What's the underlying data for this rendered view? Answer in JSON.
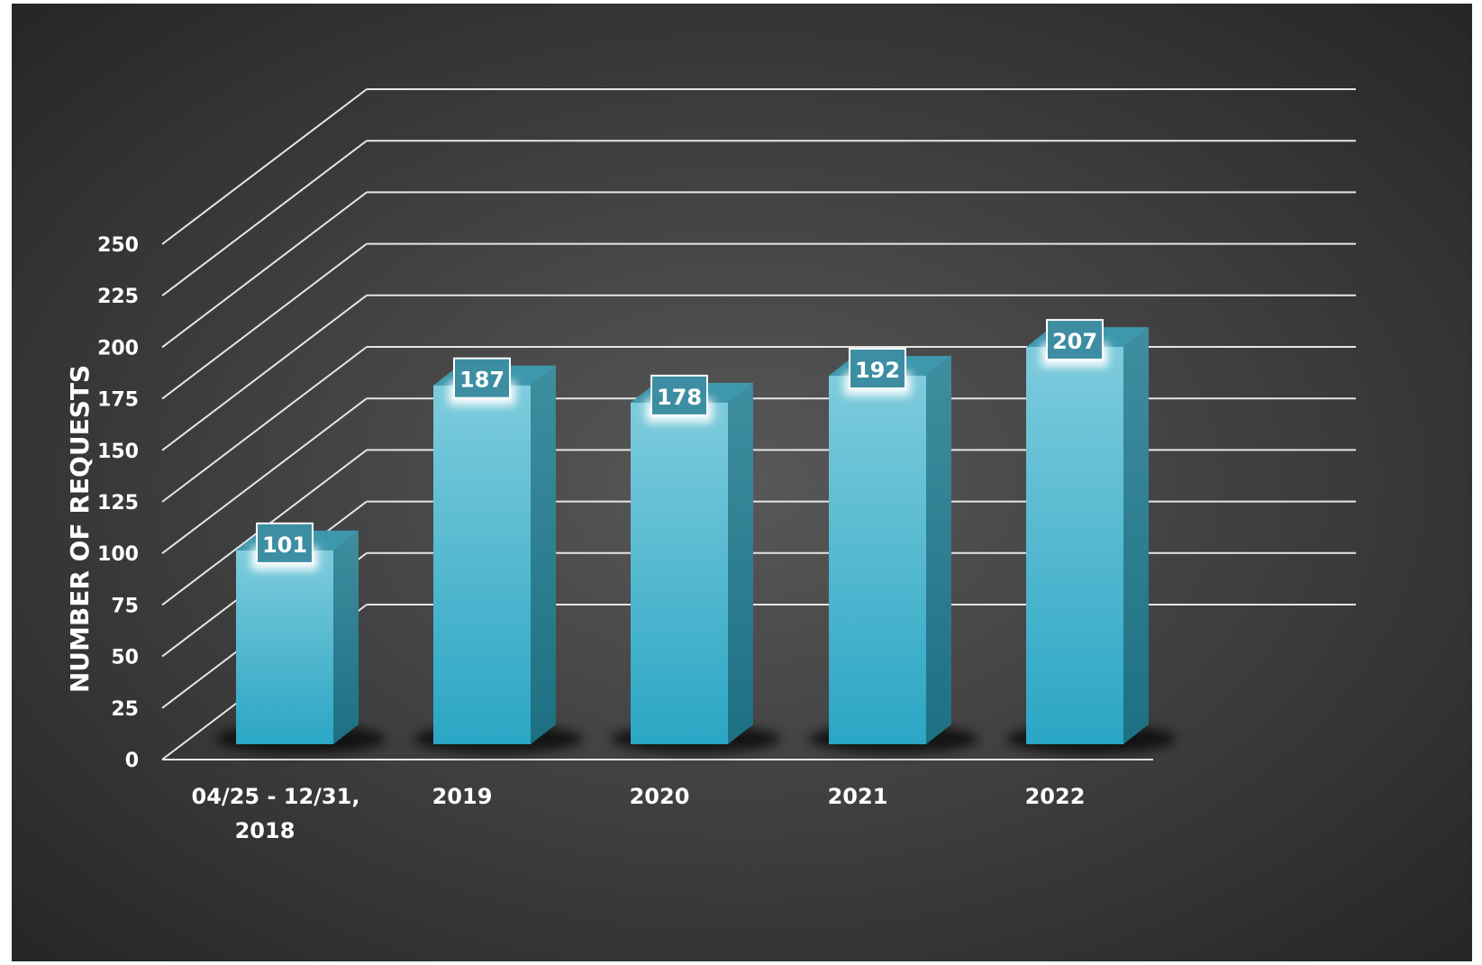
{
  "chart_data": {
    "type": "bar",
    "title": "",
    "xlabel": "",
    "ylabel": "NUMBER OF REQUESTS",
    "categories": [
      [
        "04/25 - 12/31,",
        "2018"
      ],
      [
        "2019"
      ],
      [
        "2020"
      ],
      [
        "2021"
      ],
      [
        "2022"
      ]
    ],
    "values": [
      101,
      187,
      178,
      192,
      207
    ],
    "ylim": [
      0,
      250
    ],
    "yticks": [
      0,
      25,
      50,
      75,
      100,
      125,
      150,
      175,
      200,
      225,
      250
    ],
    "grid": true,
    "legend": "none",
    "style": "3d-column",
    "colors": {
      "background_center": "#555555",
      "background_edge": "#262626",
      "bar_top": "#7ecbdc",
      "bar_bottom": "#2aa6c4",
      "bar_side": "#2a7f92",
      "bar_cap": "#3e98ad",
      "grid": "#e6e6e6",
      "text": "#ffffff"
    }
  }
}
